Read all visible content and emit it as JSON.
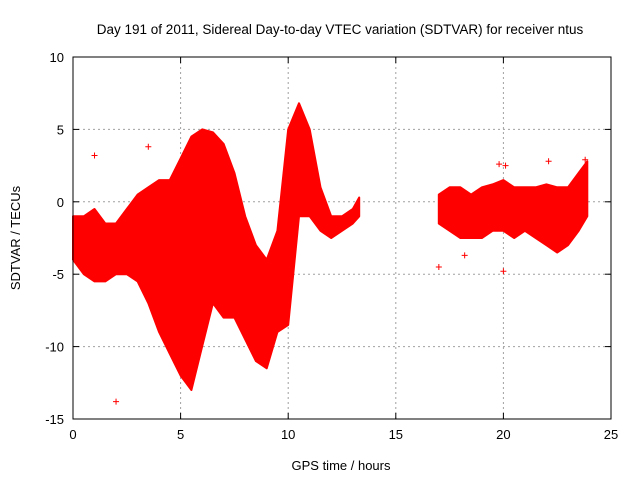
{
  "chart_data": {
    "type": "scatter",
    "title": "Day 191 of 2011, Sidereal Day-to-day VTEC variation (SDTVAR) for receiver ntus",
    "xlabel": "GPS time / hours",
    "ylabel": "SDTVAR / TECUs",
    "xlim": [
      0,
      25
    ],
    "ylim": [
      -15,
      10
    ],
    "xticks": [
      "0",
      "5",
      "10",
      "15",
      "20",
      "25"
    ],
    "yticks": [
      "10",
      "5",
      "0",
      "-5",
      "-10",
      "-15"
    ],
    "grid": true,
    "marker": "+",
    "color": "#ff0000",
    "bands": [
      {
        "name": "segment-1",
        "x": [
          0.0,
          0.5,
          1.0,
          1.5,
          2.0,
          2.5,
          3.0,
          3.5,
          4.0,
          4.5,
          5.0,
          5.5,
          6.0,
          6.5,
          7.0,
          7.5,
          8.0,
          8.5,
          9.0,
          9.5,
          10.0,
          10.5,
          11.0,
          11.5,
          12.0,
          12.5,
          13.0,
          13.3
        ],
        "upper": [
          -1.0,
          -1.0,
          -0.5,
          -1.5,
          -1.5,
          -0.5,
          0.5,
          1.0,
          1.5,
          1.5,
          3.0,
          4.5,
          5.0,
          4.8,
          4.0,
          2.0,
          -1.0,
          -3.0,
          -4.0,
          -2.0,
          5.0,
          6.8,
          5.0,
          1.0,
          -1.0,
          -1.0,
          -0.5,
          0.3
        ],
        "lower": [
          -4.0,
          -5.0,
          -5.5,
          -5.5,
          -5.0,
          -5.0,
          -5.5,
          -7.0,
          -9.0,
          -10.5,
          -12.0,
          -13.0,
          -10.0,
          -7.0,
          -8.0,
          -8.0,
          -9.5,
          -11.0,
          -11.5,
          -9.0,
          -8.5,
          -1.0,
          -1.0,
          -2.0,
          -2.5,
          -2.0,
          -1.5,
          -1.0
        ]
      },
      {
        "name": "segment-2",
        "x": [
          17.0,
          17.5,
          18.0,
          18.5,
          19.0,
          19.5,
          20.0,
          20.5,
          21.0,
          21.5,
          22.0,
          22.5,
          23.0,
          23.5,
          23.9
        ],
        "upper": [
          0.5,
          1.0,
          1.0,
          0.5,
          1.0,
          1.2,
          1.5,
          1.0,
          1.0,
          1.0,
          1.2,
          1.0,
          1.0,
          2.0,
          2.8
        ],
        "lower": [
          -1.5,
          -2.0,
          -2.5,
          -2.5,
          -2.5,
          -2.0,
          -2.0,
          -2.5,
          -2.0,
          -2.5,
          -3.0,
          -3.5,
          -3.0,
          -2.0,
          -1.0
        ]
      }
    ],
    "outliers": [
      {
        "x": 1.0,
        "y": 3.2
      },
      {
        "x": 2.0,
        "y": -13.8
      },
      {
        "x": 3.5,
        "y": 3.8
      },
      {
        "x": 17.0,
        "y": -4.5
      },
      {
        "x": 18.2,
        "y": -3.7
      },
      {
        "x": 19.8,
        "y": 2.6
      },
      {
        "x": 20.1,
        "y": 2.5
      },
      {
        "x": 20.0,
        "y": -4.8
      },
      {
        "x": 22.1,
        "y": 2.8
      },
      {
        "x": 23.8,
        "y": 2.9
      }
    ]
  }
}
